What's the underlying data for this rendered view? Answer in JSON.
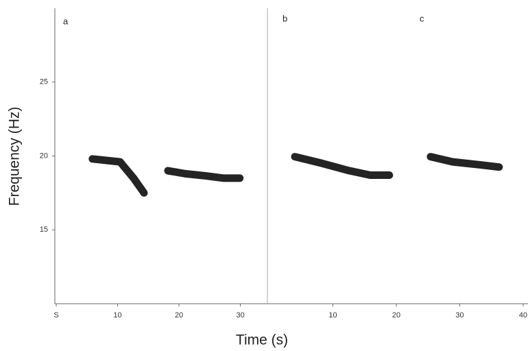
{
  "chart_data": [
    {
      "type": "line",
      "panel_labels": [
        "a"
      ],
      "ylabel": "Frequency (Hz)",
      "xlabel": "Time (s)",
      "xlim": [
        0,
        34.4
      ],
      "xticks": [
        {
          "value": 0,
          "label": "S"
        },
        10,
        20,
        30
      ],
      "ylim": [
        10,
        30
      ],
      "yticks": [
        15,
        20,
        25
      ],
      "color": "#111111",
      "series": [
        {
          "x": [
            5.9,
            10.4,
            12.6,
            14.3
          ],
          "values": [
            19.8,
            19.6,
            18.5,
            17.5
          ]
        },
        {
          "x": [
            18.2,
            21.0,
            24.4,
            27.2,
            29.9
          ],
          "values": [
            19.0,
            18.8,
            18.65,
            18.5,
            18.5
          ]
        }
      ]
    },
    {
      "type": "line",
      "panel_labels": [
        "b",
        "c"
      ],
      "xlim": [
        0,
        40
      ],
      "xticks": [
        10,
        20,
        30,
        40
      ],
      "color": "#111111",
      "series": [
        {
          "x": [
            4.0,
            8.3,
            12.6,
            15.9,
            18.9
          ],
          "values": [
            19.95,
            19.5,
            19.0,
            18.7,
            18.7
          ]
        },
        {
          "x": [
            25.4,
            28.9,
            33.2,
            36.2
          ],
          "values": [
            19.95,
            19.6,
            19.4,
            19.25
          ]
        }
      ]
    }
  ]
}
